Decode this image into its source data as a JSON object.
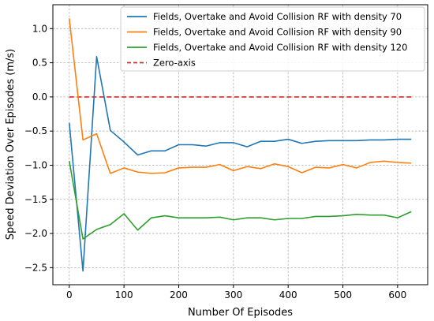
{
  "chart_data": {
    "type": "line",
    "title": "",
    "xlabel": "Number Of Episodes",
    "ylabel": "Speed Deviation Over Episodes (m/s)",
    "xlim": [
      -30,
      655
    ],
    "ylim": [
      -2.75,
      1.35
    ],
    "x_ticks": [
      0,
      100,
      200,
      300,
      400,
      500,
      600
    ],
    "y_ticks": [
      1.0,
      0.5,
      0.0,
      -0.5,
      -1.0,
      -1.5,
      -2.0,
      -2.5
    ],
    "x_tick_labels": [
      "0",
      "100",
      "200",
      "300",
      "400",
      "500",
      "600"
    ],
    "y_tick_labels": [
      "1.0",
      "0.5",
      "0.0",
      "−0.5",
      "−1.0",
      "−1.5",
      "−2.0",
      "−2.5"
    ],
    "grid": true,
    "legend_position": "top-right",
    "x": [
      0,
      25,
      50,
      75,
      100,
      125,
      150,
      175,
      200,
      225,
      250,
      275,
      300,
      325,
      350,
      375,
      400,
      425,
      450,
      475,
      500,
      525,
      550,
      575,
      600,
      625
    ],
    "series": [
      {
        "name": "Fields, Overtake and Avoid Collision RF with density 70",
        "color": "#1f77b4",
        "style": "solid",
        "values": [
          -0.38,
          -2.55,
          0.59,
          -0.49,
          -0.66,
          -0.85,
          -0.79,
          -0.79,
          -0.7,
          -0.7,
          -0.72,
          -0.67,
          -0.67,
          -0.73,
          -0.65,
          -0.65,
          -0.62,
          -0.68,
          -0.65,
          -0.64,
          -0.64,
          -0.64,
          -0.63,
          -0.63,
          -0.62,
          -0.62
        ]
      },
      {
        "name": "Fields, Overtake and Avoid Collision RF with density 90",
        "color": "#ff7f0e",
        "style": "solid",
        "values": [
          1.15,
          -0.63,
          -0.54,
          -1.12,
          -1.04,
          -1.1,
          -1.12,
          -1.11,
          -1.04,
          -1.03,
          -1.03,
          -0.99,
          -1.08,
          -1.02,
          -1.05,
          -0.98,
          -1.02,
          -1.11,
          -1.03,
          -1.04,
          -0.99,
          -1.04,
          -0.96,
          -0.94,
          -0.96,
          -0.97
        ]
      },
      {
        "name": "Fields, Overtake and Avoid Collision RF with density 120",
        "color": "#2ca02c",
        "style": "solid",
        "values": [
          -0.94,
          -2.08,
          -1.94,
          -1.87,
          -1.71,
          -1.95,
          -1.77,
          -1.74,
          -1.77,
          -1.77,
          -1.77,
          -1.76,
          -1.8,
          -1.77,
          -1.77,
          -1.8,
          -1.78,
          -1.78,
          -1.75,
          -1.75,
          -1.74,
          -1.72,
          -1.73,
          -1.73,
          -1.77,
          -1.68
        ]
      },
      {
        "name": "Zero-axis",
        "color": "#d62728",
        "style": "dashed",
        "values": [
          0,
          0,
          0,
          0,
          0,
          0,
          0,
          0,
          0,
          0,
          0,
          0,
          0,
          0,
          0,
          0,
          0,
          0,
          0,
          0,
          0,
          0,
          0,
          0,
          0,
          0
        ]
      }
    ]
  }
}
